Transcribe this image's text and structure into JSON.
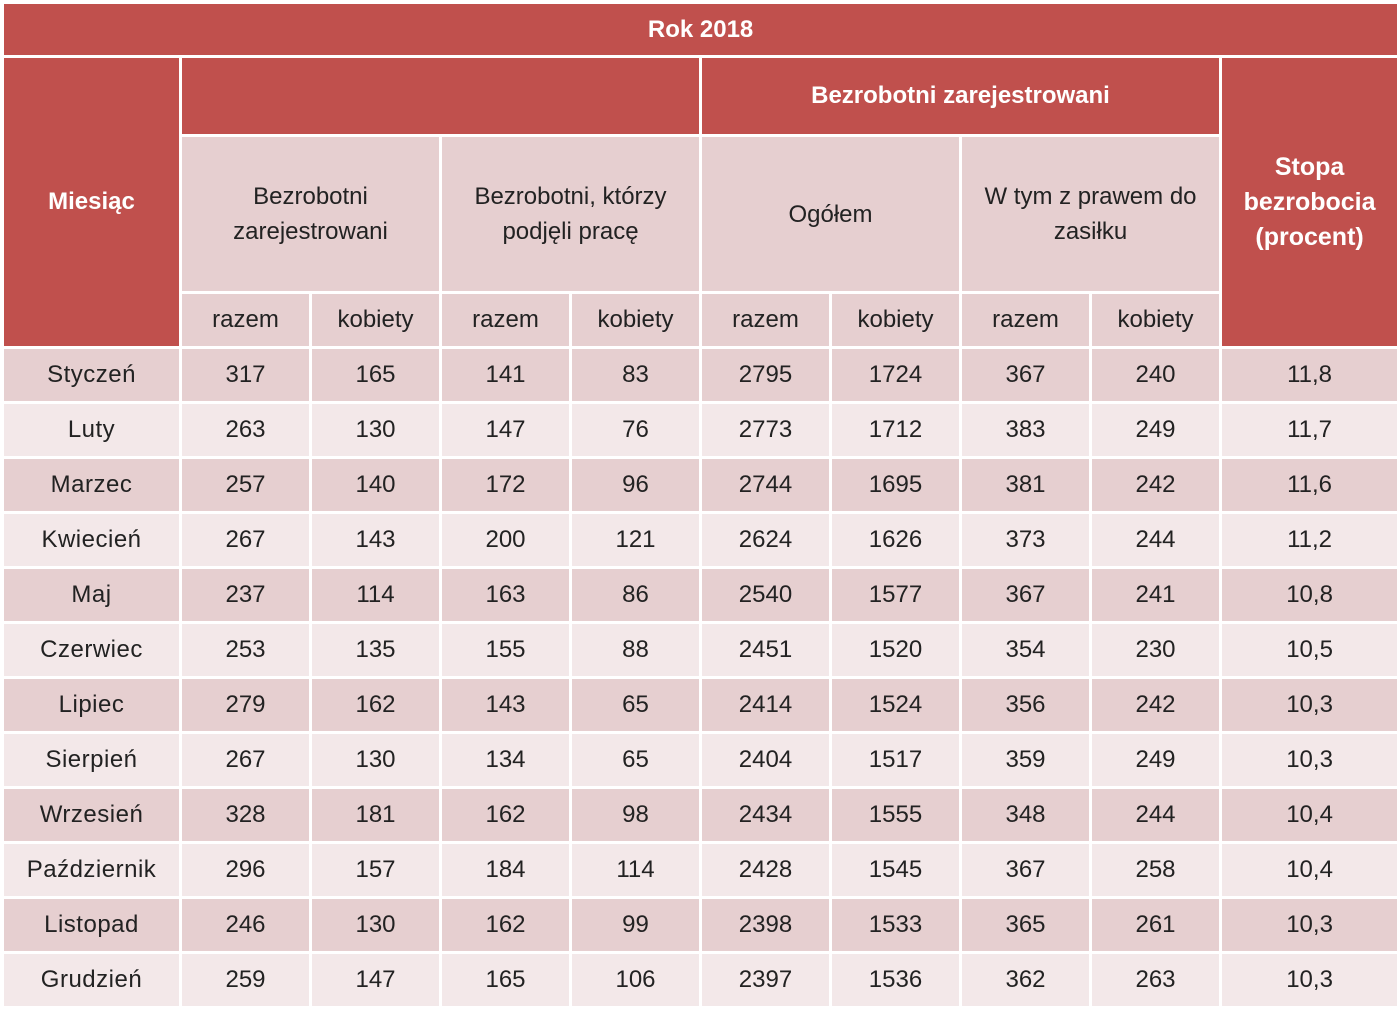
{
  "title": "Rok 2018",
  "headers": {
    "month": "Miesiąc",
    "group_registered": "Bezrobotni zarejestrowani",
    "col_registered": "Bezrobotni zarejestrowani",
    "col_took_job": "Bezrobotni, którzy podjęli pracę",
    "col_total": "Ogółem",
    "col_benefit": "W tym z prawem do zasiłku",
    "rate": "Stopa bezrobocia (procent)",
    "razem": "razem",
    "kobiety": "kobiety"
  },
  "rows": [
    {
      "month": "Styczeń",
      "reg_razem": "317",
      "reg_kobiety": "165",
      "job_razem": "141",
      "job_kobiety": "83",
      "tot_razem": "2795",
      "tot_kobiety": "1724",
      "ben_razem": "367",
      "ben_kobiety": "240",
      "rate": "11,8"
    },
    {
      "month": "Luty",
      "reg_razem": "263",
      "reg_kobiety": "130",
      "job_razem": "147",
      "job_kobiety": "76",
      "tot_razem": "2773",
      "tot_kobiety": "1712",
      "ben_razem": "383",
      "ben_kobiety": "249",
      "rate": "11,7"
    },
    {
      "month": "Marzec",
      "reg_razem": "257",
      "reg_kobiety": "140",
      "job_razem": "172",
      "job_kobiety": "96",
      "tot_razem": "2744",
      "tot_kobiety": "1695",
      "ben_razem": "381",
      "ben_kobiety": "242",
      "rate": "11,6"
    },
    {
      "month": "Kwiecień",
      "reg_razem": "267",
      "reg_kobiety": "143",
      "job_razem": "200",
      "job_kobiety": "121",
      "tot_razem": "2624",
      "tot_kobiety": "1626",
      "ben_razem": "373",
      "ben_kobiety": "244",
      "rate": "11,2"
    },
    {
      "month": "Maj",
      "reg_razem": "237",
      "reg_kobiety": "114",
      "job_razem": "163",
      "job_kobiety": "86",
      "tot_razem": "2540",
      "tot_kobiety": "1577",
      "ben_razem": "367",
      "ben_kobiety": "241",
      "rate": "10,8"
    },
    {
      "month": "Czerwiec",
      "reg_razem": "253",
      "reg_kobiety": "135",
      "job_razem": "155",
      "job_kobiety": "88",
      "tot_razem": "2451",
      "tot_kobiety": "1520",
      "ben_razem": "354",
      "ben_kobiety": "230",
      "rate": "10,5"
    },
    {
      "month": "Lipiec",
      "reg_razem": "279",
      "reg_kobiety": "162",
      "job_razem": "143",
      "job_kobiety": "65",
      "tot_razem": "2414",
      "tot_kobiety": "1524",
      "ben_razem": "356",
      "ben_kobiety": "242",
      "rate": "10,3"
    },
    {
      "month": "Sierpień",
      "reg_razem": "267",
      "reg_kobiety": "130",
      "job_razem": "134",
      "job_kobiety": "65",
      "tot_razem": "2404",
      "tot_kobiety": "1517",
      "ben_razem": "359",
      "ben_kobiety": "249",
      "rate": "10,3"
    },
    {
      "month": "Wrzesień",
      "reg_razem": "328",
      "reg_kobiety": "181",
      "job_razem": "162",
      "job_kobiety": "98",
      "tot_razem": "2434",
      "tot_kobiety": "1555",
      "ben_razem": "348",
      "ben_kobiety": "244",
      "rate": "10,4"
    },
    {
      "month": "Październik",
      "reg_razem": "296",
      "reg_kobiety": "157",
      "job_razem": "184",
      "job_kobiety": "114",
      "tot_razem": "2428",
      "tot_kobiety": "1545",
      "ben_razem": "367",
      "ben_kobiety": "258",
      "rate": "10,4"
    },
    {
      "month": "Listopad",
      "reg_razem": "246",
      "reg_kobiety": "130",
      "job_razem": "162",
      "job_kobiety": "99",
      "tot_razem": "2398",
      "tot_kobiety": "1533",
      "ben_razem": "365",
      "ben_kobiety": "261",
      "rate": "10,3"
    },
    {
      "month": "Grudzień",
      "reg_razem": "259",
      "reg_kobiety": "147",
      "job_razem": "165",
      "job_kobiety": "106",
      "tot_razem": "2397",
      "tot_kobiety": "1536",
      "ben_razem": "362",
      "ben_kobiety": "263",
      "rate": "10,3"
    }
  ],
  "colors": {
    "header_red": "#c0504d",
    "row_dark": "#e6cfd0",
    "row_light": "#f3e8e9"
  }
}
